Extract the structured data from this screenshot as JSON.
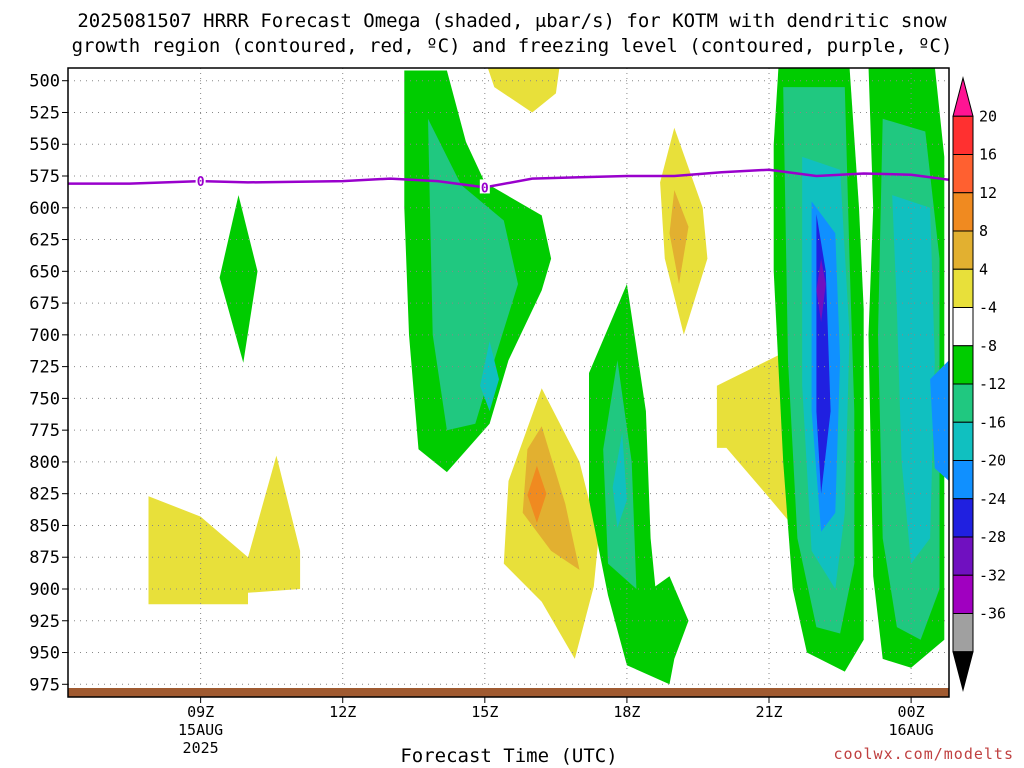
{
  "title_line1": "2025081507 HRRR Forecast Omega (shaded, μbar/s) for KOTM with dendritic snow",
  "title_line2": "growth region (contoured, red, ºC) and freezing level (contoured, purple, ºC)",
  "xlabel": "Forecast Time (UTC)",
  "credit": "coolwx.com/modelts",
  "chart_data": {
    "type": "heatmap",
    "title": "2025081507 HRRR Forecast Omega (shaded, μbar/s) for KOTM with dendritic snow growth region (contoured, red, ºC) and freezing level (contoured, purple, ºC)",
    "xlabel": "Forecast Time (UTC)",
    "ylabel": "",
    "y_axis": "pressure (mb), inverted",
    "ylim": [
      985,
      490
    ],
    "y_ticks": [
      500,
      525,
      550,
      575,
      600,
      625,
      650,
      675,
      700,
      725,
      750,
      775,
      800,
      825,
      850,
      875,
      900,
      925,
      950,
      975
    ],
    "x_range_hours_utc": [
      6.2,
      24.8
    ],
    "x_ticks": [
      {
        "label": "09Z",
        "label2": "15AUG",
        "label3": "2025"
      },
      {
        "label": "12Z"
      },
      {
        "label": "15Z"
      },
      {
        "label": "18Z"
      },
      {
        "label": "21Z"
      },
      {
        "label": "00Z",
        "label2": "16AUG"
      }
    ],
    "grid": true,
    "colorbar": {
      "position": "right",
      "levels": [
        20,
        16,
        12,
        8,
        4,
        -4,
        -8,
        -12,
        -16,
        -20,
        -24,
        -28,
        -32,
        -36
      ],
      "colors": [
        "#ff1493",
        "#ff3030",
        "#ff6030",
        "#f08a20",
        "#e2b030",
        "#e8e03a",
        "#ffffff",
        "#00cc00",
        "#20c880",
        "#10c0c0",
        "#1090ff",
        "#2020e0",
        "#7010c0",
        "#a000c0",
        "#a0a0a0",
        "#000000"
      ]
    },
    "freezing_level": {
      "label": "0",
      "color": "#9900cc",
      "points": [
        [
          6.2,
          581
        ],
        [
          7.5,
          581
        ],
        [
          9,
          579
        ],
        [
          10,
          580
        ],
        [
          12,
          579
        ],
        [
          13,
          577
        ],
        [
          14,
          579
        ],
        [
          15,
          584
        ],
        [
          16,
          577
        ],
        [
          17,
          576
        ],
        [
          18,
          575
        ],
        [
          19,
          575
        ],
        [
          20,
          572
        ],
        [
          21,
          570
        ],
        [
          22,
          575
        ],
        [
          23,
          573
        ],
        [
          24,
          574
        ],
        [
          24.8,
          578
        ]
      ]
    },
    "omega_regions": [
      {
        "band": "4 to 8",
        "color": "#e8e03a",
        "points": [
          [
            7.9,
            827
          ],
          [
            9,
            843
          ],
          [
            10,
            875
          ],
          [
            10.6,
            795
          ],
          [
            11.1,
            870
          ],
          [
            11.1,
            900
          ],
          [
            10,
            903
          ],
          [
            10,
            912
          ],
          [
            7.9,
            912
          ]
        ]
      },
      {
        "band": "4 to 8",
        "color": "#e8e03a",
        "points": [
          [
            15,
            483
          ],
          [
            16.6,
            483
          ],
          [
            16.5,
            510
          ],
          [
            16,
            525
          ],
          [
            15.2,
            505
          ]
        ]
      },
      {
        "band": "4 to 8",
        "color": "#e8e03a",
        "points": [
          [
            16.2,
            742
          ],
          [
            17,
            800
          ],
          [
            17.4,
            860
          ],
          [
            17.3,
            898
          ],
          [
            16.9,
            955
          ],
          [
            16.2,
            910
          ],
          [
            15.4,
            880
          ],
          [
            15.5,
            815
          ]
        ]
      },
      {
        "band": "8 to 12",
        "color": "#e2b030",
        "points": [
          [
            16.2,
            772
          ],
          [
            16.7,
            833
          ],
          [
            17,
            885
          ],
          [
            16.4,
            870
          ],
          [
            15.8,
            840
          ],
          [
            15.9,
            790
          ]
        ]
      },
      {
        "band": "12 to 16",
        "color": "#f08a20",
        "points": [
          [
            16.1,
            803
          ],
          [
            16.3,
            825
          ],
          [
            16.1,
            848
          ],
          [
            15.9,
            826
          ]
        ]
      },
      {
        "band": "4 to 8",
        "color": "#e8e03a",
        "points": [
          [
            19,
            537
          ],
          [
            19.6,
            600
          ],
          [
            19.7,
            640
          ],
          [
            19.2,
            700
          ],
          [
            18.8,
            640
          ],
          [
            18.7,
            580
          ]
        ]
      },
      {
        "band": "8 to 12",
        "color": "#e2b030",
        "points": [
          [
            19,
            586
          ],
          [
            19.3,
            615
          ],
          [
            19.1,
            660
          ],
          [
            18.9,
            620
          ]
        ]
      },
      {
        "band": "4 to 8",
        "color": "#e8e03a",
        "points": [
          [
            19.9,
            740
          ],
          [
            21.9,
            703
          ],
          [
            21.9,
            868
          ],
          [
            21,
            828
          ],
          [
            20.1,
            789
          ],
          [
            19.9,
            789
          ]
        ]
      },
      {
        "band": "-4 to -8",
        "color": "#00cc00",
        "points": [
          [
            9.8,
            590
          ],
          [
            10.2,
            650
          ],
          [
            9.9,
            722
          ],
          [
            9.4,
            655
          ]
        ]
      },
      {
        "band": "-4 to -8",
        "color": "#00cc00",
        "points": [
          [
            13.3,
            492
          ],
          [
            14.2,
            492
          ],
          [
            14.6,
            548
          ],
          [
            15,
            580
          ],
          [
            16.2,
            606
          ],
          [
            16.4,
            640
          ],
          [
            16.2,
            665
          ],
          [
            15.5,
            720
          ],
          [
            15.1,
            770
          ],
          [
            14.2,
            808
          ],
          [
            13.6,
            790
          ],
          [
            13.4,
            700
          ],
          [
            13.3,
            600
          ]
        ]
      },
      {
        "band": "-8 to -12",
        "color": "#20c880",
        "points": [
          [
            13.8,
            530
          ],
          [
            14.5,
            582
          ],
          [
            15.4,
            610
          ],
          [
            15.7,
            660
          ],
          [
            15.2,
            720
          ],
          [
            14.8,
            770
          ],
          [
            14.2,
            775
          ],
          [
            13.9,
            700
          ]
        ]
      },
      {
        "band": "-12 to -16",
        "color": "#10c0c0",
        "points": [
          [
            15.1,
            705
          ],
          [
            15.3,
            735
          ],
          [
            15.1,
            760
          ],
          [
            14.9,
            740
          ]
        ]
      },
      {
        "band": "-4 to -8",
        "color": "#00cc00",
        "points": [
          [
            18,
            660
          ],
          [
            18.4,
            760
          ],
          [
            18.5,
            860
          ],
          [
            18.6,
            898
          ],
          [
            18.9,
            890
          ],
          [
            19.3,
            925
          ],
          [
            19,
            955
          ],
          [
            18.9,
            975
          ],
          [
            18,
            960
          ],
          [
            17.6,
            905
          ],
          [
            17.2,
            830
          ],
          [
            17.2,
            730
          ]
        ]
      },
      {
        "band": "-8 to -12",
        "color": "#20c880",
        "points": [
          [
            17.8,
            720
          ],
          [
            18.1,
            800
          ],
          [
            18.2,
            900
          ],
          [
            17.6,
            880
          ],
          [
            17.5,
            790
          ]
        ]
      },
      {
        "band": "-12 to -16",
        "color": "#10c0c0",
        "points": [
          [
            17.9,
            777
          ],
          [
            18,
            830
          ],
          [
            17.8,
            852
          ],
          [
            17.7,
            820
          ]
        ]
      },
      {
        "band": "-4 to -8",
        "color": "#00cc00",
        "points": [
          [
            21.2,
            489
          ],
          [
            22.7,
            489
          ],
          [
            22.9,
            600
          ],
          [
            23,
            680
          ],
          [
            23,
            770
          ],
          [
            23,
            850
          ],
          [
            23,
            940
          ],
          [
            22.6,
            965
          ],
          [
            21.8,
            950
          ],
          [
            21.5,
            900
          ],
          [
            21.3,
            800
          ],
          [
            21.1,
            650
          ],
          [
            21.1,
            550
          ]
        ]
      },
      {
        "band": "-8 to -12",
        "color": "#20c880",
        "points": [
          [
            21.3,
            505
          ],
          [
            22.6,
            505
          ],
          [
            22.7,
            640
          ],
          [
            22.8,
            760
          ],
          [
            22.8,
            880
          ],
          [
            22.5,
            935
          ],
          [
            22,
            930
          ],
          [
            21.6,
            860
          ],
          [
            21.4,
            720
          ]
        ]
      },
      {
        "band": "-12 to -16",
        "color": "#10c0c0",
        "points": [
          [
            21.7,
            560
          ],
          [
            22.5,
            570
          ],
          [
            22.7,
            700
          ],
          [
            22.6,
            840
          ],
          [
            22.4,
            900
          ],
          [
            21.9,
            870
          ],
          [
            21.7,
            740
          ]
        ]
      },
      {
        "band": "-16 to -20",
        "color": "#1090ff",
        "points": [
          [
            21.9,
            595
          ],
          [
            22.4,
            620
          ],
          [
            22.5,
            720
          ],
          [
            22.4,
            840
          ],
          [
            22.1,
            855
          ],
          [
            21.9,
            760
          ]
        ]
      },
      {
        "band": "-20 to -24",
        "color": "#2020e0",
        "points": [
          [
            22,
            605
          ],
          [
            22.2,
            650
          ],
          [
            22.3,
            760
          ],
          [
            22.1,
            825
          ],
          [
            22,
            760
          ]
        ]
      },
      {
        "band": "-24 to -28",
        "color": "#7010c0",
        "points": [
          [
            22.1,
            640
          ],
          [
            22.2,
            660
          ],
          [
            22.1,
            690
          ],
          [
            22,
            665
          ]
        ]
      },
      {
        "band": "-4 to -8",
        "color": "#00cc00",
        "points": [
          [
            23.1,
            489
          ],
          [
            24.5,
            489
          ],
          [
            24.7,
            560
          ],
          [
            24.7,
            700
          ],
          [
            24.7,
            940
          ],
          [
            24,
            962
          ],
          [
            23.4,
            955
          ],
          [
            23.2,
            890
          ],
          [
            23.1,
            700
          ],
          [
            23.2,
            600
          ]
        ]
      },
      {
        "band": "-8 to -12",
        "color": "#20c880",
        "points": [
          [
            23.4,
            530
          ],
          [
            24.3,
            540
          ],
          [
            24.6,
            640
          ],
          [
            24.6,
            900
          ],
          [
            24.2,
            940
          ],
          [
            23.7,
            930
          ],
          [
            23.4,
            860
          ],
          [
            23.3,
            700
          ]
        ]
      },
      {
        "band": "-12 to -16",
        "color": "#10c0c0",
        "points": [
          [
            23.6,
            590
          ],
          [
            24.4,
            600
          ],
          [
            24.5,
            720
          ],
          [
            24.4,
            860
          ],
          [
            24,
            880
          ],
          [
            23.8,
            800
          ],
          [
            23.7,
            680
          ]
        ]
      },
      {
        "band": "-16 to -20",
        "color": "#1090ff",
        "points": [
          [
            24.4,
            735
          ],
          [
            24.8,
            720
          ],
          [
            24.8,
            815
          ],
          [
            24.5,
            805
          ]
        ]
      }
    ],
    "surface_color": "#a05a30"
  }
}
